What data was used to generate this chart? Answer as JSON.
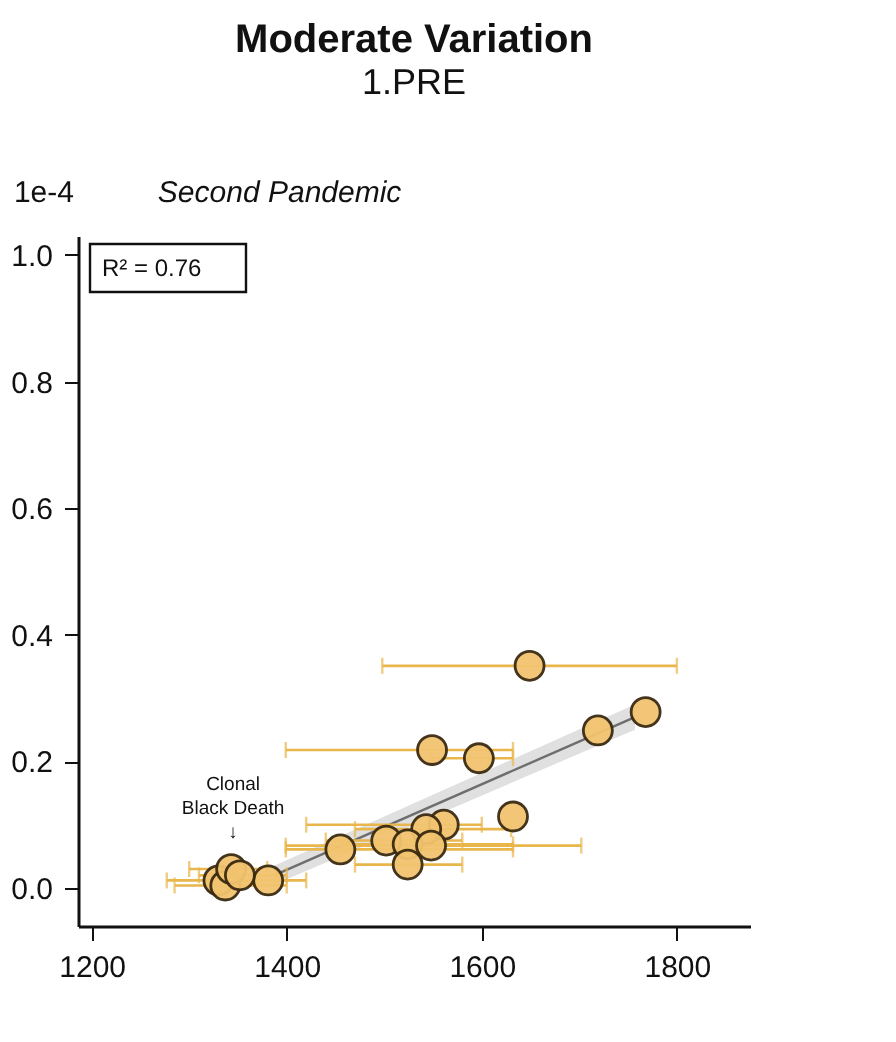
{
  "chart_data": {
    "type": "scatter",
    "title": "Moderate Variation",
    "subtitle": "1.PRE",
    "annotations": [
      "1e-4",
      "Second Pandemic",
      "R² = 0.76",
      {
        "text": "Clonal\nBlack Death\n↓",
        "x": 1345,
        "y": 0.035
      }
    ],
    "xlim": [
      1186,
      1875
    ],
    "ylim": [
      -0.06,
      1.03
    ],
    "xticks": [
      {
        "value": 1200,
        "label": "1200"
      },
      {
        "value": 1400,
        "label": "1400"
      },
      {
        "value": 1600,
        "label": "1600"
      },
      {
        "value": 1800,
        "label": "1800"
      }
    ],
    "yticks": [
      {
        "value": 0,
        "label": "0.0"
      },
      {
        "value": 0.2,
        "label": "0.2"
      },
      {
        "value": 0.4,
        "label": "0.4"
      },
      {
        "value": 0.6,
        "label": "0.6"
      },
      {
        "value": 0.8,
        "label": "0.8"
      },
      {
        "value": 1.0,
        "label": "1.0"
      }
    ],
    "grid": false,
    "series": [
      {
        "type": "line",
        "color": "#6e6e6e",
        "x": [
          1387,
          1757
        ],
        "values": [
          0.02,
          0.27
        ],
        "lower": [
          0.005,
          0.25
        ],
        "upper": [
          0.035,
          0.29
        ]
      },
      {
        "color": "#f2c46f",
        "marker": "circle",
        "x": [
          1649,
          1768,
          1719,
          1549,
          1597,
          1632,
          1561,
          1543,
          1502,
          1524,
          1548,
          1524,
          1455,
          1381,
          1330,
          1337,
          1343,
          1352
        ],
        "values": [
          0.351,
          0.278,
          0.249,
          0.218,
          0.205,
          0.113,
          0.1,
          0.093,
          0.075,
          0.069,
          0.067,
          0.037,
          0.061,
          0.012,
          0.012,
          0.004,
          0.03,
          0.02
        ],
        "xerrors": [
          [
            1498,
            1800
          ],
          null,
          null,
          [
            1399,
            1632
          ],
          [
            1549,
            1632
          ],
          null,
          [
            1420,
            1600
          ],
          [
            1470,
            1630
          ],
          [
            1440,
            1580
          ],
          [
            1460,
            1632
          ],
          [
            1399,
            1702
          ],
          [
            1470,
            1580
          ],
          [
            1399,
            1632
          ],
          [
            1348,
            1420
          ],
          [
            1277,
            1370
          ],
          [
            1285,
            1400
          ],
          [
            1300,
            1380
          ],
          [
            1310,
            1400
          ]
        ]
      }
    ]
  }
}
